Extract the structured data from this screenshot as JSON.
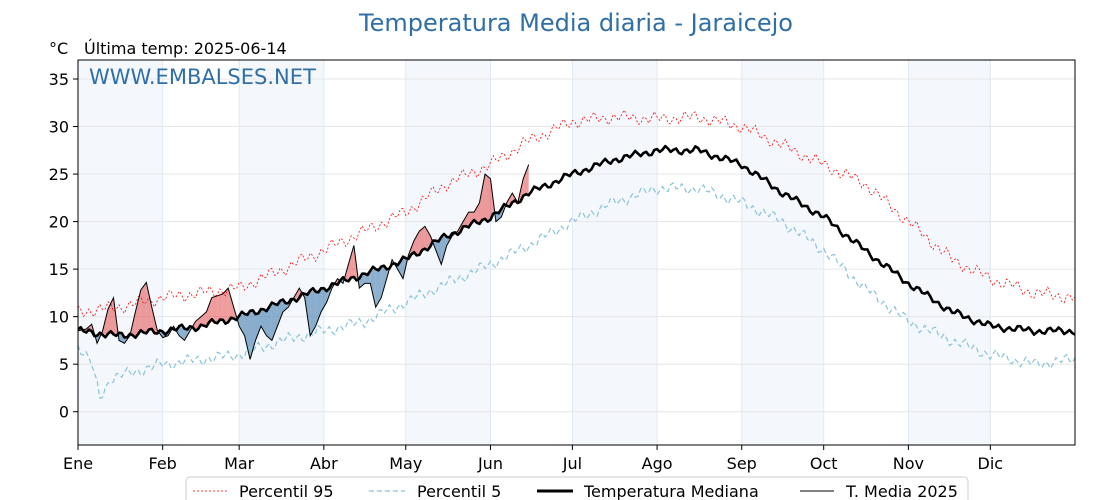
{
  "chart_data": {
    "type": "line",
    "title": "Temperatura Media diaria - Jaraicejo",
    "unit_label": "°C",
    "last_temp_label": "Última temp: 2025-06-14",
    "watermark": "WWW.EMBALSES.NET",
    "ylim": [
      -3.5,
      37
    ],
    "yticks": [
      0,
      5,
      10,
      15,
      20,
      25,
      30,
      35
    ],
    "months": [
      "Ene",
      "Feb",
      "Mar",
      "Abr",
      "May",
      "Jun",
      "Jul",
      "Ago",
      "Sep",
      "Oct",
      "Nov",
      "Dic"
    ],
    "month_start_days": [
      0,
      31,
      59,
      90,
      120,
      151,
      181,
      212,
      243,
      273,
      304,
      334,
      365
    ],
    "shaded_months": [
      0,
      2,
      4,
      6,
      8,
      10
    ],
    "grid": true,
    "legend_position": "bottom",
    "colors": {
      "above": "#e34a4a",
      "below": "#2f6fa6",
      "p95": "#ff0000",
      "p5": "#87c3d9",
      "median": "#000000"
    },
    "series": [
      {
        "name": "Percentil 95",
        "key": "p95",
        "anchors": [
          [
            0,
            10.5
          ],
          [
            15,
            11
          ],
          [
            31,
            12
          ],
          [
            45,
            12.5
          ],
          [
            59,
            13
          ],
          [
            75,
            15
          ],
          [
            90,
            17
          ],
          [
            105,
            19
          ],
          [
            120,
            21
          ],
          [
            135,
            24
          ],
          [
            151,
            26
          ],
          [
            165,
            28.5
          ],
          [
            181,
            30.5
          ],
          [
            196,
            31
          ],
          [
            212,
            30.8
          ],
          [
            227,
            31
          ],
          [
            243,
            30
          ],
          [
            258,
            28
          ],
          [
            273,
            26
          ],
          [
            288,
            24
          ],
          [
            304,
            20
          ],
          [
            320,
            16
          ],
          [
            334,
            14
          ],
          [
            350,
            12.5
          ],
          [
            365,
            12
          ]
        ]
      },
      {
        "name": "Percentil 5",
        "key": "p5",
        "anchors": [
          [
            0,
            7
          ],
          [
            5,
            5
          ],
          [
            8,
            1.5
          ],
          [
            12,
            3.5
          ],
          [
            31,
            5
          ],
          [
            45,
            5.5
          ],
          [
            59,
            6
          ],
          [
            75,
            7.5
          ],
          [
            90,
            8.5
          ],
          [
            105,
            9.5
          ],
          [
            120,
            11.5
          ],
          [
            135,
            13.5
          ],
          [
            151,
            15.5
          ],
          [
            165,
            17.5
          ],
          [
            181,
            20
          ],
          [
            196,
            22
          ],
          [
            212,
            23.5
          ],
          [
            227,
            23.5
          ],
          [
            243,
            22
          ],
          [
            258,
            20
          ],
          [
            273,
            17
          ],
          [
            288,
            13
          ],
          [
            304,
            9.5
          ],
          [
            320,
            7.5
          ],
          [
            334,
            6
          ],
          [
            350,
            5
          ],
          [
            365,
            5.5
          ]
        ]
      },
      {
        "name": "Temperatura Mediana",
        "key": "median",
        "anchors": [
          [
            0,
            8.5
          ],
          [
            15,
            8
          ],
          [
            31,
            8.5
          ],
          [
            45,
            9
          ],
          [
            59,
            10
          ],
          [
            75,
            11.5
          ],
          [
            90,
            13
          ],
          [
            105,
            14.5
          ],
          [
            120,
            16
          ],
          [
            135,
            18.5
          ],
          [
            151,
            20.5
          ],
          [
            165,
            23
          ],
          [
            181,
            25
          ],
          [
            196,
            26.5
          ],
          [
            212,
            27.5
          ],
          [
            227,
            27.5
          ],
          [
            243,
            26
          ],
          [
            258,
            23
          ],
          [
            273,
            20.5
          ],
          [
            288,
            17
          ],
          [
            304,
            13.5
          ],
          [
            320,
            10.5
          ],
          [
            334,
            9
          ],
          [
            350,
            8.5
          ],
          [
            365,
            8.5
          ]
        ]
      },
      {
        "name": "T. Media 2025",
        "key": "y2025",
        "points": [
          [
            0,
            8.5
          ],
          [
            3,
            8.7
          ],
          [
            5,
            9.2
          ],
          [
            7,
            7.2
          ],
          [
            9,
            8.5
          ],
          [
            11,
            10.8
          ],
          [
            13,
            12
          ],
          [
            15,
            7.5
          ],
          [
            17,
            7.2
          ],
          [
            19,
            8
          ],
          [
            21,
            10.5
          ],
          [
            23,
            12.8
          ],
          [
            25,
            13.6
          ],
          [
            27,
            11
          ],
          [
            29,
            8.6
          ],
          [
            31,
            7.8
          ],
          [
            33,
            8
          ],
          [
            35,
            9
          ],
          [
            37,
            8
          ],
          [
            39,
            7.5
          ],
          [
            41,
            8.5
          ],
          [
            43,
            9.5
          ],
          [
            45,
            10
          ],
          [
            47,
            10.5
          ],
          [
            49,
            12
          ],
          [
            51,
            12.2
          ],
          [
            53,
            12.4
          ],
          [
            55,
            13
          ],
          [
            57,
            11
          ],
          [
            59,
            9
          ],
          [
            61,
            8
          ],
          [
            63,
            5.5
          ],
          [
            65,
            7.5
          ],
          [
            67,
            9
          ],
          [
            69,
            8
          ],
          [
            71,
            7.5
          ],
          [
            73,
            9
          ],
          [
            75,
            10.5
          ],
          [
            77,
            11
          ],
          [
            79,
            12
          ],
          [
            81,
            13
          ],
          [
            83,
            12
          ],
          [
            85,
            8
          ],
          [
            87,
            9
          ],
          [
            89,
            10.5
          ],
          [
            91,
            11.5
          ],
          [
            93,
            13
          ],
          [
            95,
            14
          ],
          [
            97,
            13.5
          ],
          [
            99,
            15.5
          ],
          [
            101,
            17.5
          ],
          [
            103,
            13
          ],
          [
            105,
            13.5
          ],
          [
            107,
            13.5
          ],
          [
            109,
            11
          ],
          [
            111,
            12
          ],
          [
            113,
            14
          ],
          [
            115,
            16
          ],
          [
            117,
            15
          ],
          [
            119,
            14
          ],
          [
            121,
            16.5
          ],
          [
            123,
            18
          ],
          [
            125,
            19
          ],
          [
            127,
            19.5
          ],
          [
            129,
            18.5
          ],
          [
            131,
            17
          ],
          [
            133,
            15.5
          ],
          [
            135,
            17.5
          ],
          [
            137,
            18.5
          ],
          [
            139,
            19
          ],
          [
            141,
            20
          ],
          [
            143,
            21
          ],
          [
            145,
            21
          ],
          [
            147,
            22
          ],
          [
            149,
            25
          ],
          [
            151,
            24.5
          ],
          [
            153,
            20
          ],
          [
            155,
            20.5
          ],
          [
            157,
            22
          ],
          [
            159,
            23
          ],
          [
            161,
            22
          ],
          [
            163,
            24.5
          ],
          [
            165,
            26
          ]
        ]
      }
    ]
  },
  "legend": {
    "items": [
      {
        "label": "Percentil 95",
        "style": "p95"
      },
      {
        "label": "Percentil 5",
        "style": "p5"
      },
      {
        "label": "Temperatura Mediana",
        "style": "median"
      },
      {
        "label": "T. Media 2025",
        "style": "y2025"
      }
    ]
  }
}
